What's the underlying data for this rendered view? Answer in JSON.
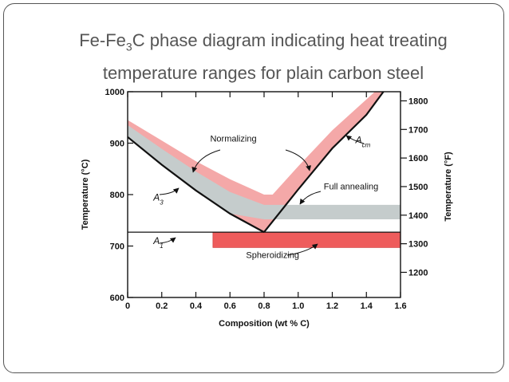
{
  "slide": {
    "title_part1": "Fe-Fe",
    "title_sub": "3",
    "title_part2": "C phase diagram indicating heat treating",
    "title_line2": "temperature ranges for plain carbon steel"
  },
  "chart_data": {
    "type": "area",
    "xlabel": "Composition (wt % C)",
    "ylabel": "Temperature (°C)",
    "ylabel_right": "Temperature (°F)",
    "xlim": [
      0,
      1.6
    ],
    "ylim": [
      600,
      1000
    ],
    "x_ticks": [
      0,
      0.2,
      0.4,
      0.6,
      0.8,
      1.0,
      1.2,
      1.4,
      1.6
    ],
    "x_tick_labels": [
      "0",
      "0.2",
      "0.4",
      "0.6",
      "0.8",
      "1.0",
      "1.2",
      "1.4",
      "1.6"
    ],
    "y_ticks": [
      600,
      700,
      800,
      900,
      1000
    ],
    "y_tick_labels": [
      "600",
      "700",
      "800",
      "900",
      "1000"
    ],
    "y_right_ticks_f": [
      1200,
      1300,
      1400,
      1500,
      1600,
      1700,
      1800
    ],
    "y_right_tick_labels": [
      "1200",
      "1300",
      "1400",
      "1500",
      "1600",
      "1700",
      "1800"
    ],
    "lines": {
      "A3": [
        [
          0,
          912
        ],
        [
          0.2,
          858
        ],
        [
          0.4,
          808
        ],
        [
          0.6,
          763
        ],
        [
          0.8,
          727
        ]
      ],
      "Acm": [
        [
          0.8,
          727
        ],
        [
          1.0,
          810
        ],
        [
          1.2,
          890
        ],
        [
          1.4,
          955
        ],
        [
          1.5,
          1000
        ]
      ],
      "A1": [
        [
          0,
          727
        ],
        [
          1.6,
          727
        ]
      ]
    },
    "regions": [
      {
        "name": "Normalizing",
        "color": "#f4a8a8",
        "upper": [
          [
            0,
            945
          ],
          [
            0.2,
            905
          ],
          [
            0.4,
            865
          ],
          [
            0.6,
            830
          ],
          [
            0.8,
            800
          ],
          [
            0.85,
            800
          ],
          [
            1.0,
            855
          ],
          [
            1.2,
            925
          ],
          [
            1.4,
            985
          ],
          [
            1.45,
            1000
          ]
        ],
        "lower": [
          [
            0,
            912
          ],
          [
            0.2,
            858
          ],
          [
            0.4,
            808
          ],
          [
            0.6,
            763
          ],
          [
            0.8,
            727
          ],
          [
            1.0,
            810
          ],
          [
            1.2,
            890
          ],
          [
            1.4,
            955
          ],
          [
            1.5,
            1000
          ]
        ]
      },
      {
        "name": "Full annealing",
        "color": "#c5cccc",
        "upper": [
          [
            0,
            935
          ],
          [
            0.2,
            889
          ],
          [
            0.4,
            845
          ],
          [
            0.6,
            805
          ],
          [
            0.8,
            780
          ],
          [
            0.82,
            780
          ],
          [
            1.6,
            780
          ]
        ],
        "lower": [
          [
            0,
            912
          ],
          [
            0.2,
            858
          ],
          [
            0.4,
            808
          ],
          [
            0.6,
            763
          ],
          [
            0.8,
            752
          ],
          [
            1.6,
            752
          ]
        ]
      },
      {
        "name": "Spheroidizing",
        "color": "#ee5c5c",
        "x_range": [
          0.5,
          1.6
        ],
        "temp_range": [
          697,
          727
        ]
      }
    ],
    "annotations": [
      {
        "text_main": "A",
        "text_sub": "3",
        "x": 0.18,
        "y": 788
      },
      {
        "text_main": "A",
        "text_sub": "1",
        "x": 0.18,
        "y": 704
      },
      {
        "text_main": "A",
        "text_sub": "cm",
        "x": 1.38,
        "y": 900
      },
      {
        "text": "Normalizing",
        "x": 0.62,
        "y": 903
      },
      {
        "text": "Full annealing",
        "x": 1.31,
        "y": 810
      },
      {
        "text": "Spheroidizing",
        "x": 0.85,
        "y": 677
      }
    ],
    "grid": false
  }
}
